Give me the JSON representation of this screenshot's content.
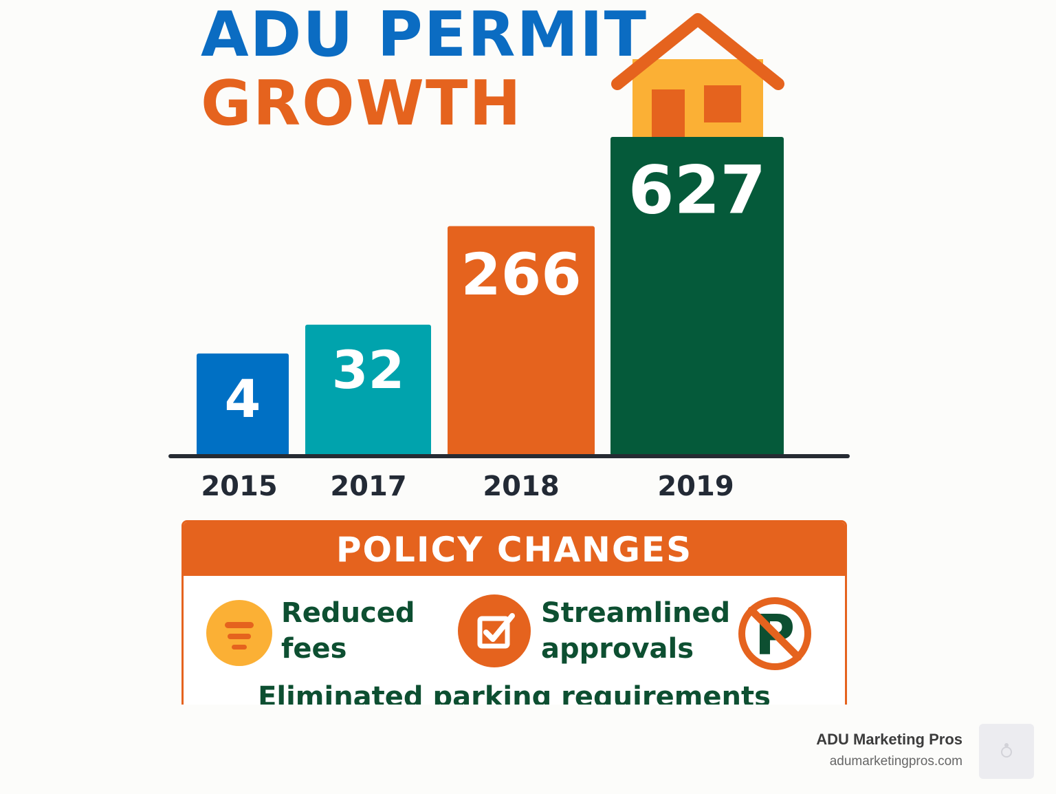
{
  "chart_data": {
    "type": "bar",
    "title": "ADU PERMIT GROWTH",
    "title_lines": [
      "ADU PERMIT",
      "GROWTH"
    ],
    "categories": [
      "2015",
      "2017",
      "2018",
      "2019"
    ],
    "values": [
      4,
      32,
      266,
      627
    ],
    "data_labels": [
      "4",
      "32",
      "266",
      "627"
    ],
    "xlabel": "",
    "ylabel": "",
    "grid": false,
    "legend": "none",
    "bar_colors": [
      "#0070c4",
      "#00a3ad",
      "#e5631e",
      "#055a3a"
    ]
  },
  "colors": {
    "title_blue": "#0b6cc2",
    "title_orange": "#e5631e",
    "policy_text_green": "#0d4f31",
    "house_body": "#fbb035",
    "house_roof": "#e5631e"
  },
  "policy": {
    "header": "POLICY CHANGES",
    "items": [
      {
        "label_lines": [
          "Reduced",
          "fees"
        ],
        "icon": "reduced-fees-icon"
      },
      {
        "label_lines": [
          "Streamlined",
          "approvals"
        ],
        "icon": "checkbox-icon"
      },
      {
        "label": "Eliminated parking requirements",
        "icon": "no-parking-icon"
      }
    ]
  },
  "brand": {
    "name": "ADU Marketing Pros",
    "url": "adumarketingpros.com"
  }
}
